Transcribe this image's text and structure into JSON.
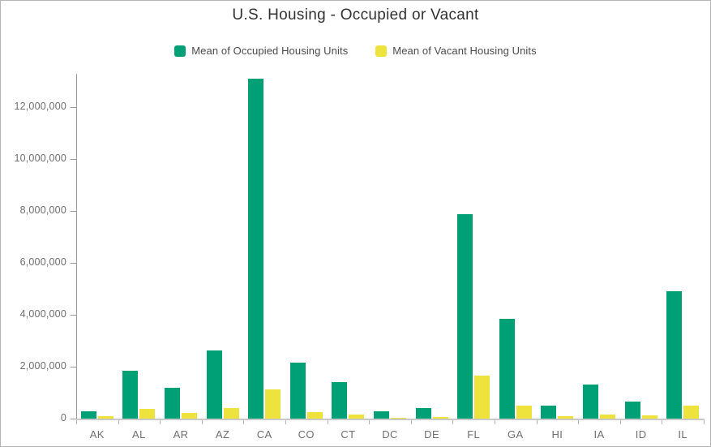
{
  "header": {
    "title": "U.S. Housing - Occupied or Vacant"
  },
  "legend": {
    "items": [
      {
        "label": "Mean of Occupied Housing Units",
        "color": "#00a077"
      },
      {
        "label": "Mean of Vacant Housing Units",
        "color": "#ede33c"
      }
    ]
  },
  "colors": {
    "occupied_bar": "#00a077",
    "vacant_bar": "#ede33c",
    "title_text": "#323232",
    "legend_text": "#4b4b4b",
    "axis_text": "#6f6f6f",
    "axis_line": "#9a9a9a",
    "baseline": "#c8c8c8",
    "frame_border": "#b5b5b5"
  },
  "chart_data": {
    "type": "bar",
    "title": "U.S. Housing - Occupied or Vacant",
    "xlabel": "",
    "ylabel": "",
    "categories": [
      "AK",
      "AL",
      "AR",
      "AZ",
      "CA",
      "CO",
      "CT",
      "DC",
      "DE",
      "FL",
      "GA",
      "HI",
      "IA",
      "ID",
      "IL"
    ],
    "series": [
      {
        "name": "Mean of Occupied Housing Units",
        "color": "#00a077",
        "values": [
          270000,
          1850000,
          1190000,
          2630000,
          13090000,
          2160000,
          1400000,
          290000,
          400000,
          7880000,
          3840000,
          500000,
          1310000,
          660000,
          4910000
        ]
      },
      {
        "name": "Mean of Vacant Housing Units",
        "color": "#ede33c",
        "values": [
          80000,
          390000,
          215000,
          410000,
          1130000,
          250000,
          150000,
          40000,
          60000,
          1660000,
          500000,
          90000,
          160000,
          125000,
          500000
        ]
      }
    ],
    "ylim": [
      0,
      13300000
    ],
    "ytick_interval": 2000000,
    "yticks": [
      {
        "value": 0,
        "label": "0"
      },
      {
        "value": 2000000,
        "label": "2,000,000"
      },
      {
        "value": 4000000,
        "label": "4,000,000"
      },
      {
        "value": 6000000,
        "label": "6,000,000"
      },
      {
        "value": 8000000,
        "label": "8,000,000"
      },
      {
        "value": 10000000,
        "label": "10,000,000"
      },
      {
        "value": 12000000,
        "label": "12,000,000"
      }
    ],
    "grid": false,
    "legend_position": "top"
  }
}
